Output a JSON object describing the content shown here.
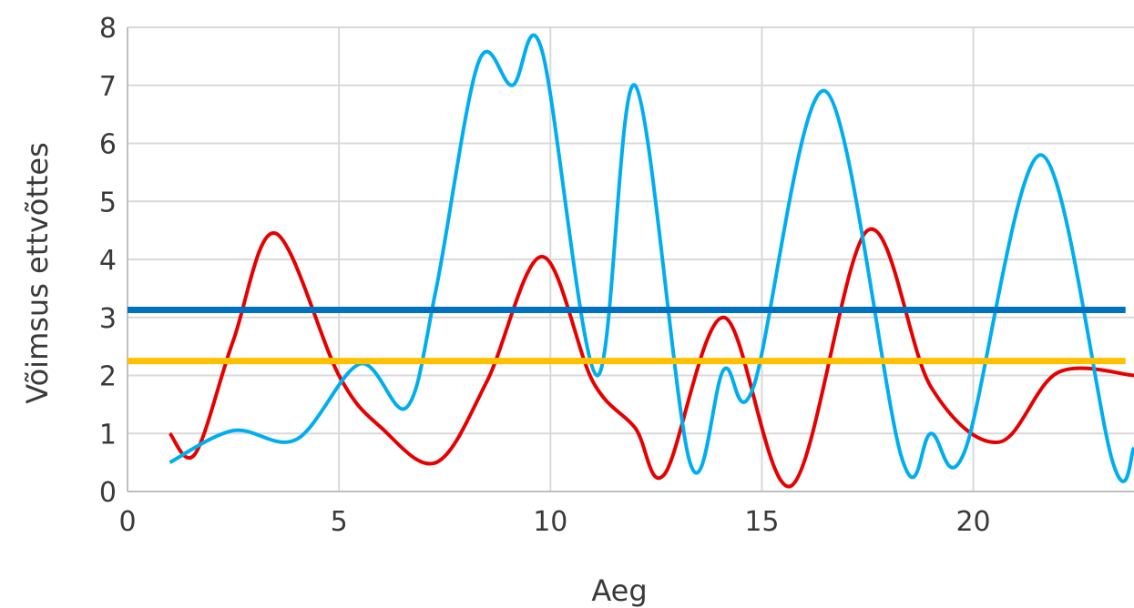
{
  "chart_data": {
    "type": "line",
    "title": "",
    "xlabel": "Aeg",
    "ylabel": "Võimsus  ettvõttes",
    "xlim": [
      0,
      23.8
    ],
    "ylim": [
      0,
      8
    ],
    "xticks": [
      0,
      5,
      10,
      15,
      20
    ],
    "yticks": [
      0,
      1,
      2,
      3,
      4,
      5,
      6,
      7,
      8
    ],
    "grid": "vertical and horizontal",
    "legend": "none",
    "series": [
      {
        "color": "#e60000",
        "smooth": true,
        "x": [
          1,
          1.6,
          2.5,
          3.5,
          5,
          6,
          7.3,
          8.5,
          9.8,
          11,
          12,
          12.7,
          14.1,
          15.7,
          17.5,
          19,
          20.6,
          22,
          23.8
        ],
        "y": [
          1.0,
          0.65,
          2.6,
          4.45,
          2.0,
          1.1,
          0.5,
          1.9,
          4.05,
          1.9,
          1.1,
          0.3,
          3.0,
          0.1,
          4.5,
          1.8,
          0.85,
          2.05,
          2.0
        ]
      },
      {
        "color": "#00aeef",
        "smooth": true,
        "x": [
          1,
          2.5,
          4,
          5.5,
          6.6,
          7.3,
          8.3,
          9.1,
          9.8,
          11.1,
          12,
          13.3,
          14.1,
          14.8,
          16.5,
          18.3,
          19,
          19.8,
          21.6,
          23.3,
          23.8
        ],
        "y": [
          0.5,
          1.05,
          0.9,
          2.2,
          1.45,
          3.5,
          7.4,
          7.0,
          7.6,
          2.0,
          7.0,
          0.5,
          2.1,
          1.8,
          6.9,
          0.6,
          1.0,
          0.7,
          5.8,
          0.5,
          0.75
        ]
      },
      {
        "color": "#0070c0",
        "smooth": false,
        "x": [
          0,
          23.6
        ],
        "y": [
          3.13,
          3.13
        ]
      },
      {
        "color": "#ffc000",
        "smooth": false,
        "x": [
          0,
          23.6
        ],
        "y": [
          2.25,
          2.25
        ]
      }
    ]
  }
}
